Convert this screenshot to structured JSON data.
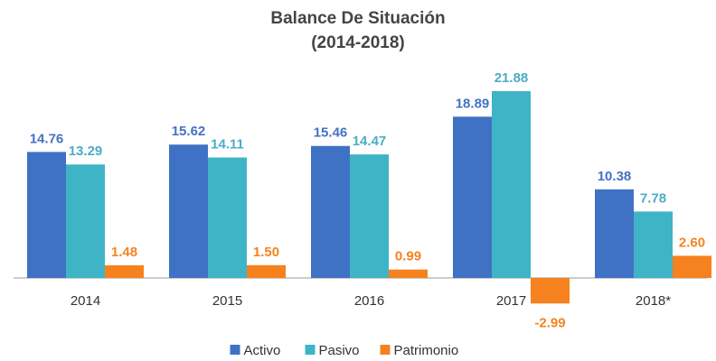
{
  "chart_data": {
    "type": "bar",
    "title": "Balance De Situación",
    "subtitle": "(2014-2018)",
    "categories": [
      "2014",
      "2015",
      "2016",
      "2017",
      "2018*"
    ],
    "series": [
      {
        "name": "Activo",
        "color": "#3f72c4",
        "values": [
          14.76,
          15.62,
          15.46,
          18.89,
          10.38
        ],
        "value_labels": [
          "14.76",
          "15.62",
          "15.46",
          "18.89",
          "10.38"
        ]
      },
      {
        "name": "Pasivo",
        "color": "#3fb4c6",
        "values": [
          13.29,
          14.11,
          14.47,
          21.88,
          7.78
        ],
        "value_labels": [
          "13.29",
          "14.11",
          "14.47",
          "21.88",
          "7.78"
        ]
      },
      {
        "name": "Patrimonio",
        "color": "#f5821f",
        "values": [
          1.48,
          1.5,
          0.99,
          -2.99,
          2.6
        ],
        "value_labels": [
          "1.48",
          "1.50",
          "0.99",
          "-2.99",
          "2.60"
        ]
      }
    ],
    "legend": "bottom"
  }
}
